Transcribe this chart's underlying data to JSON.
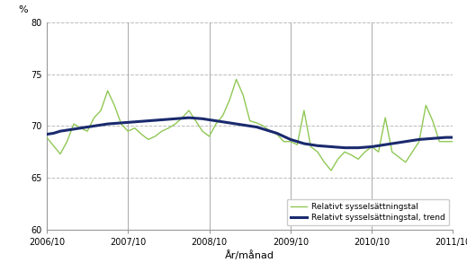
{
  "title": "",
  "ylabel": "%",
  "xlabel": "År/månad",
  "ylim": [
    60,
    80
  ],
  "yticks": [
    60,
    65,
    70,
    75,
    80
  ],
  "xlim": [
    0,
    60
  ],
  "xtick_positions": [
    0,
    12,
    24,
    36,
    48,
    60
  ],
  "xtick_labels": [
    "2006/10",
    "2007/10",
    "2008/10",
    "2009/10",
    "2010/10",
    "2011/10"
  ],
  "vline_positions": [
    12,
    24,
    36,
    48,
    60
  ],
  "green_color": "#90c855",
  "blue_color": "#1a2a6e",
  "background_color": "#ffffff",
  "legend_labels": [
    "Relativt sysselsättningstal",
    "Relativt sysselsättningstal, trend"
  ],
  "green_data": [
    68.9,
    68.1,
    67.3,
    68.5,
    70.2,
    69.8,
    69.5,
    70.8,
    71.5,
    73.4,
    72.0,
    70.2,
    69.5,
    69.8,
    69.2,
    68.7,
    69.0,
    69.5,
    69.8,
    70.2,
    70.8,
    71.5,
    70.5,
    69.5,
    69.0,
    70.2,
    71.0,
    72.5,
    74.5,
    73.0,
    70.5,
    70.3,
    70.0,
    69.5,
    69.2,
    68.5,
    68.5,
    68.2,
    71.5,
    68.0,
    67.5,
    66.5,
    65.7,
    66.8,
    67.5,
    67.2,
    66.8,
    67.5,
    68.0,
    67.5,
    70.8,
    67.5,
    67.0,
    66.5,
    67.5,
    68.5,
    72.0,
    70.5,
    68.5,
    68.5,
    68.5
  ],
  "blue_data": [
    69.2,
    69.3,
    69.5,
    69.6,
    69.7,
    69.8,
    69.9,
    70.0,
    70.1,
    70.2,
    70.25,
    70.3,
    70.35,
    70.4,
    70.45,
    70.5,
    70.55,
    70.6,
    70.65,
    70.7,
    70.75,
    70.8,
    70.75,
    70.7,
    70.6,
    70.5,
    70.4,
    70.3,
    70.2,
    70.1,
    70.0,
    69.9,
    69.7,
    69.5,
    69.3,
    69.0,
    68.7,
    68.5,
    68.3,
    68.2,
    68.1,
    68.05,
    68.0,
    67.95,
    67.9,
    67.9,
    67.9,
    67.95,
    68.0,
    68.1,
    68.2,
    68.3,
    68.4,
    68.5,
    68.6,
    68.7,
    68.75,
    68.8,
    68.85,
    68.9,
    68.9
  ]
}
